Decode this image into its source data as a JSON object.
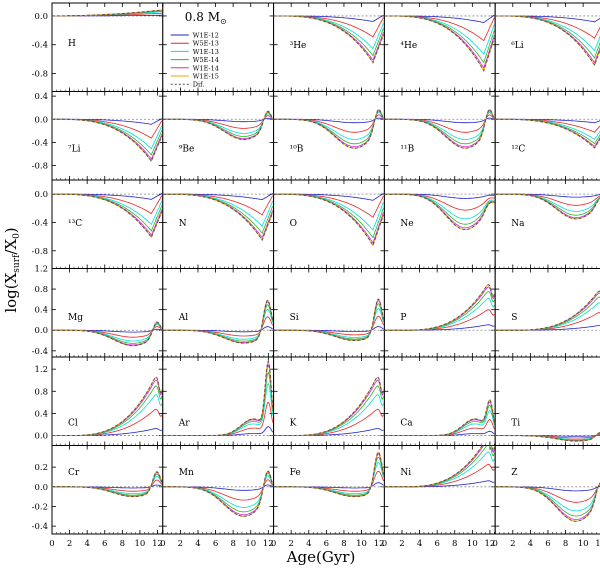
{
  "figure": {
    "ylabel": "log(X_surf/X_0)",
    "xlabel": "Age(Gyr)"
  },
  "legend": {
    "title": "0.8 M",
    "title_sub": "⊙",
    "entries": [
      {
        "label": "W1E-12",
        "color": "#2222cc",
        "dash": false
      },
      {
        "label": "W5E-13",
        "color": "#ee2222",
        "dash": false
      },
      {
        "label": "W1E-13",
        "color": "#00dddd",
        "dash": false
      },
      {
        "label": "W5E-14",
        "color": "#22bb22",
        "dash": false
      },
      {
        "label": "W1E-14",
        "color": "#dd22dd",
        "dash": false
      },
      {
        "label": "W1E-15",
        "color": "#eeaa00",
        "dash": false
      },
      {
        "label": "Dif.",
        "color": "#555555",
        "dash": true
      }
    ]
  },
  "chart_data": {
    "type": "line",
    "title": "",
    "xlabel": "Age(Gyr)",
    "ylabel": "log(X_surf/X_0)",
    "xlim": [
      0,
      12.6
    ],
    "x_ticks": [
      0,
      2,
      4,
      6,
      8,
      10,
      12
    ],
    "series_names": [
      "W1E-12",
      "W5E-13",
      "W1E-13",
      "W5E-14",
      "W1E-14",
      "W1E-15",
      "Dif."
    ],
    "rows": [
      {
        "ylim": [
          -1.05,
          0.18
        ],
        "y_ticks": [
          0.0,
          -0.4,
          -0.8
        ],
        "y_tick_labels": [
          "0.0",
          "-0.4",
          "-0.8"
        ]
      },
      {
        "ylim": [
          -1.05,
          0.48
        ],
        "y_ticks": [
          0.4,
          0.0,
          -0.4,
          -0.8
        ],
        "y_tick_labels": [
          "0.4",
          "0.0",
          "-0.4",
          "-0.8"
        ]
      },
      {
        "ylim": [
          -1.05,
          0.2
        ],
        "y_ticks": [
          0.0,
          -0.4,
          -0.8
        ],
        "y_tick_labels": [
          "0.0",
          "-0.4",
          "-0.8"
        ]
      },
      {
        "ylim": [
          -0.52,
          1.2
        ],
        "y_ticks": [
          1.2,
          0.8,
          0.4,
          0.0,
          -0.4
        ],
        "y_tick_labels": [
          "1.2",
          "0.8",
          "0.4",
          "0.0",
          "-0.4"
        ]
      },
      {
        "ylim": [
          -0.18,
          1.42
        ],
        "y_ticks": [
          1.2,
          0.8,
          0.4,
          0.0
        ],
        "y_tick_labels": [
          "1.2",
          "0.8",
          "0.4",
          "0.0"
        ]
      },
      {
        "ylim": [
          -0.48,
          0.42
        ],
        "y_ticks": [
          0.2,
          0.0,
          -0.2,
          -0.4
        ],
        "y_tick_labels": [
          "0.2",
          "0.0",
          "-0.2",
          "-0.4"
        ]
      }
    ],
    "panels": [
      {
        "label": "H",
        "row": 0,
        "col": 0,
        "shape": "h",
        "amp": 0.08
      },
      {
        "label": "legend",
        "row": 0,
        "col": 1,
        "shape": "legend"
      },
      {
        "label": "³He",
        "row": 0,
        "col": 2,
        "shape": "dip",
        "amp": 0.85
      },
      {
        "label": "⁴He",
        "row": 0,
        "col": 3,
        "shape": "dip",
        "amp": 1.0
      },
      {
        "label": "⁶Li",
        "row": 0,
        "col": 4,
        "shape": "dip",
        "amp": 0.9
      },
      {
        "label": "⁷Li",
        "row": 1,
        "col": 0,
        "shape": "dip",
        "amp": 0.95
      },
      {
        "label": "⁹Be",
        "row": 1,
        "col": 1,
        "shape": "dipRise",
        "amp": 0.35,
        "peak": 0.3
      },
      {
        "label": "¹⁰B",
        "row": 1,
        "col": 2,
        "shape": "dipRise",
        "amp": 0.5,
        "peak": 0.4
      },
      {
        "label": "¹¹B",
        "row": 1,
        "col": 3,
        "shape": "dipRise",
        "amp": 0.5,
        "peak": 0.4
      },
      {
        "label": "¹²C",
        "row": 1,
        "col": 4,
        "shape": "dip",
        "amp": 0.65
      },
      {
        "label": "¹³C",
        "row": 2,
        "col": 0,
        "shape": "dip",
        "amp": 0.8
      },
      {
        "label": "N",
        "row": 2,
        "col": 1,
        "shape": "dip",
        "amp": 0.85
      },
      {
        "label": "O",
        "row": 2,
        "col": 2,
        "shape": "dip",
        "amp": 0.95
      },
      {
        "label": "Ne",
        "row": 2,
        "col": 3,
        "shape": "dipRise",
        "amp": 0.5,
        "peak": 0.1
      },
      {
        "label": "Na",
        "row": 2,
        "col": 4,
        "shape": "dipRise",
        "amp": 0.35,
        "peak": 0.1
      },
      {
        "label": "Mg",
        "row": 3,
        "col": 0,
        "shape": "dipRise",
        "amp": 0.3,
        "peak": 0.3
      },
      {
        "label": "Al",
        "row": 3,
        "col": 1,
        "shape": "dipRise",
        "amp": 0.25,
        "peak": 0.7
      },
      {
        "label": "Si",
        "row": 3,
        "col": 2,
        "shape": "dipRise",
        "amp": 0.2,
        "peak": 0.7
      },
      {
        "label": "P",
        "row": 3,
        "col": 3,
        "shape": "rise",
        "amp": 1.05
      },
      {
        "label": "S",
        "row": 3,
        "col": 4,
        "shape": "rise",
        "amp": 0.9
      },
      {
        "label": "Cl",
        "row": 4,
        "col": 0,
        "shape": "rise",
        "amp": 1.25
      },
      {
        "label": "Ar",
        "row": 4,
        "col": 1,
        "shape": "rise2",
        "amp": 0.3,
        "peak": 1.2
      },
      {
        "label": "K",
        "row": 4,
        "col": 2,
        "shape": "rise",
        "amp": 1.25
      },
      {
        "label": "Ca",
        "row": 4,
        "col": 3,
        "shape": "rise2",
        "amp": 0.3,
        "peak": 0.5
      },
      {
        "label": "Ti",
        "row": 4,
        "col": 4,
        "shape": "dipRise",
        "amp": 0.1,
        "peak": 0.1
      },
      {
        "label": "Cr",
        "row": 5,
        "col": 0,
        "shape": "dipRise",
        "amp": 0.1,
        "peak": 0.2
      },
      {
        "label": "Mn",
        "row": 5,
        "col": 1,
        "shape": "dipRise",
        "amp": 0.3,
        "peak": 0.3
      },
      {
        "label": "Fe",
        "row": 5,
        "col": 2,
        "shape": "dipRise",
        "amp": 0.1,
        "peak": 0.4
      },
      {
        "label": "Ni",
        "row": 5,
        "col": 3,
        "shape": "rise",
        "amp": 0.6
      },
      {
        "label": "Z",
        "row": 5,
        "col": 4,
        "shape": "dipRise",
        "amp": 0.35,
        "peak": 0.2
      }
    ]
  }
}
